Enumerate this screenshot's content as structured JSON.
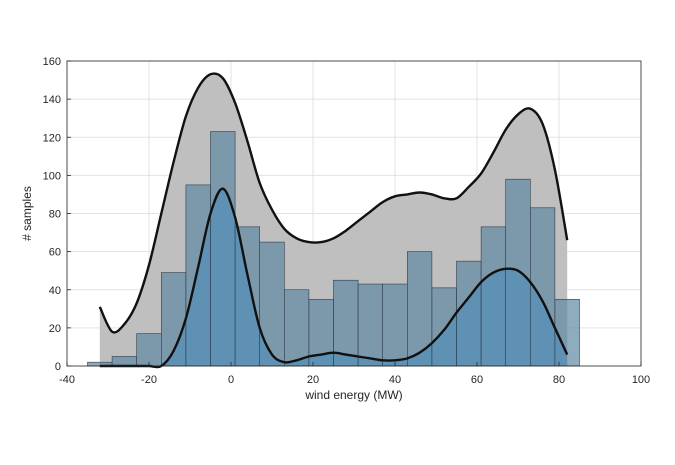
{
  "chart_data": {
    "type": "bar",
    "title": "",
    "xlabel": "wind energy (MW)",
    "ylabel": "# samples",
    "xlim": [
      -40,
      100
    ],
    "ylim": [
      0,
      160
    ],
    "xticks": [
      -40,
      -20,
      0,
      20,
      40,
      60,
      80,
      100
    ],
    "yticks": [
      0,
      20,
      40,
      60,
      80,
      100,
      120,
      140,
      160
    ],
    "grid": true,
    "histogram": {
      "bin_width": 6,
      "bin_starts": [
        -35,
        -29,
        -23,
        -17,
        -11,
        -5,
        1,
        7,
        13,
        19,
        25,
        31,
        37,
        43,
        49,
        55,
        61,
        67,
        73,
        79
      ],
      "counts": [
        2,
        5,
        17,
        49,
        95,
        123,
        73,
        65,
        40,
        35,
        45,
        43,
        43,
        60,
        41,
        55,
        73,
        98,
        83,
        35
      ]
    },
    "series": [
      {
        "type": "area",
        "x": [
          -32,
          -29,
          -26,
          -23,
          -20,
          -17,
          -14,
          -11,
          -8,
          -5,
          -2,
          1,
          4,
          7,
          10,
          13,
          16,
          19,
          22,
          25,
          28,
          31,
          34,
          37,
          40,
          43,
          46,
          49,
          52,
          55,
          58,
          61,
          64,
          67,
          70,
          73,
          76,
          79,
          82
        ],
        "values": [
          31,
          18,
          22,
          33,
          53,
          80,
          107,
          131,
          146,
          153,
          151,
          138,
          118,
          96,
          82,
          72,
          67,
          65,
          65,
          67,
          71,
          76,
          81,
          86,
          89,
          90,
          91,
          90,
          88,
          88,
          94,
          101,
          112,
          124,
          132,
          135,
          127,
          103,
          66
        ],
        "color": "#bfbfbf"
      },
      {
        "type": "area",
        "x": [
          -32,
          -29,
          -26,
          -23,
          -20,
          -17,
          -14,
          -11,
          -8,
          -5,
          -2,
          1,
          4,
          7,
          10,
          13,
          16,
          19,
          22,
          25,
          28,
          31,
          34,
          37,
          40,
          43,
          46,
          49,
          52,
          55,
          58,
          61,
          64,
          67,
          70,
          73,
          76,
          79,
          82
        ],
        "values": [
          0,
          0,
          0,
          0,
          0,
          0,
          8,
          25,
          52,
          80,
          93,
          78,
          48,
          20,
          6,
          2,
          3,
          5,
          6,
          7,
          6,
          5,
          4,
          3,
          3,
          4,
          7,
          12,
          19,
          28,
          36,
          44,
          49,
          51,
          50,
          44,
          34,
          20,
          6
        ],
        "color": "#5ca8dc"
      }
    ],
    "colors": {
      "bars": "#5f87a3",
      "kde_wide": "#bfbfbf",
      "kde_mixture": "#5ca8dc",
      "outline": "#111111"
    }
  }
}
